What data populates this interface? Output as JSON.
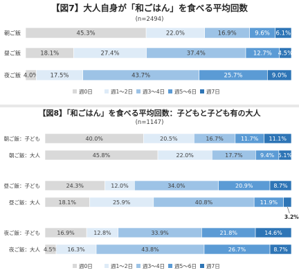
{
  "colors": {
    "cat0": "#d9d9d9",
    "cat1": "#deebf7",
    "cat2": "#9dc3e6",
    "cat3": "#5b9bd5",
    "cat4": "#2e75b6"
  },
  "chart_data": [
    {
      "type": "bar",
      "orientation": "horizontal",
      "stacked": "percent",
      "title": "【図7】大人自身が「和ごはん」を食べる平均回数",
      "subtitle": "(n=2494)",
      "categories": [
        "朝ご飯",
        "昼ご飯",
        "夜ご飯"
      ],
      "series": [
        {
          "name": "週0日",
          "values": [
            45.3,
            18.1,
            4.0
          ]
        },
        {
          "name": "週1〜2日",
          "values": [
            22.0,
            27.4,
            17.5
          ]
        },
        {
          "name": "週3〜4日",
          "values": [
            16.9,
            37.4,
            43.7
          ]
        },
        {
          "name": "週5〜6日",
          "values": [
            9.6,
            12.7,
            25.7
          ]
        },
        {
          "name": "週7日",
          "values": [
            6.1,
            4.5,
            9.0
          ]
        }
      ],
      "data_labels": [
        [
          "45.3%",
          "22.0%",
          "16.9%",
          "9.6%",
          "6.1%"
        ],
        [
          "18.1%",
          "27.4%",
          "37.4%",
          "12.7%",
          "4.5%"
        ],
        [
          "4.0%",
          "17.5%",
          "43.7%",
          "25.7%",
          "9.0%"
        ]
      ],
      "legend_position": "bottom",
      "xlim": [
        0,
        100
      ]
    },
    {
      "type": "bar",
      "orientation": "horizontal",
      "stacked": "percent",
      "title": "【図8】「和ごはん」を食べる平均回数：子どもと子ども有の大人",
      "subtitle": "(n=1147)",
      "categories": [
        "朝ご飯：子ども",
        "朝ご飯：大人",
        "昼ご飯：子ども",
        "昼ご飯：大人",
        "夜ご飯：子ども",
        "夜ご飯：大人"
      ],
      "series": [
        {
          "name": "週0日",
          "values": [
            40.0,
            45.8,
            24.3,
            18.1,
            16.9,
            4.5
          ]
        },
        {
          "name": "週1〜2日",
          "values": [
            20.5,
            22.0,
            12.0,
            25.9,
            12.8,
            16.3
          ]
        },
        {
          "name": "週3〜4日",
          "values": [
            16.7,
            17.7,
            34.0,
            40.8,
            33.9,
            43.8
          ]
        },
        {
          "name": "週5〜6日",
          "values": [
            11.7,
            9.4,
            20.9,
            11.9,
            21.8,
            26.7
          ]
        },
        {
          "name": "週7日",
          "values": [
            11.1,
            5.1,
            8.7,
            3.2,
            14.6,
            8.7
          ]
        }
      ],
      "data_labels": [
        [
          "40.0%",
          "20.5%",
          "16.7%",
          "11.7%",
          "11.1%"
        ],
        [
          "45.8%",
          "22.0%",
          "17.7%",
          "9.4%",
          "5.1%"
        ],
        [
          "24.3%",
          "12.0%",
          "34.0%",
          "20.9%",
          "8.7%"
        ],
        [
          "18.1%",
          "25.9%",
          "40.8%",
          "11.9%",
          "3.2%"
        ],
        [
          "16.9%",
          "12.8%",
          "33.9%",
          "21.8%",
          "14.6%"
        ],
        [
          "4.5%",
          "16.3%",
          "43.8%",
          "26.7%",
          "8.7%"
        ]
      ],
      "legend_position": "bottom",
      "xlim": [
        0,
        100
      ]
    }
  ]
}
